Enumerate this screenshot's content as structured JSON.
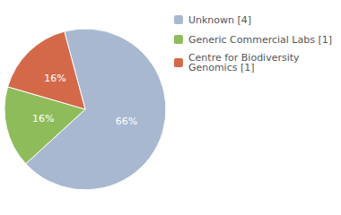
{
  "chart_data": {
    "type": "pie",
    "categories": [
      "Unknown [4]",
      "Generic Commercial Labs [1]",
      "Centre for Biodiversity\nGenomics [1]"
    ],
    "values": [
      66,
      16,
      16
    ],
    "value_labels": [
      "66%",
      "16%",
      "16%"
    ],
    "colors": [
      "#a8b8d0",
      "#8fbc5a",
      "#d4694a"
    ],
    "data_labels": true,
    "legend": "upper right"
  }
}
